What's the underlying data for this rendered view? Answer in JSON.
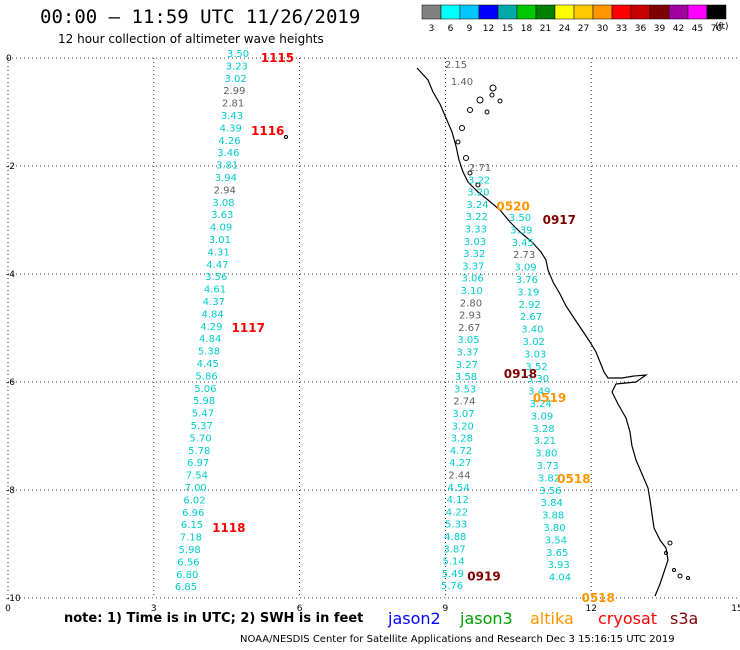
{
  "header": {
    "title": "00:00 – 11:59 UTC 11/26/2019",
    "subtitle": "12 hour collection of altimeter wave heights"
  },
  "color_scale": {
    "labels": [
      "3",
      "6",
      "9",
      "12",
      "15",
      "18",
      "21",
      "24",
      "27",
      "30",
      "33",
      "36",
      "39",
      "42",
      "45",
      "70"
    ],
    "unit": "(ft)",
    "colors": [
      "#808080",
      "#00ffff",
      "#00c8ff",
      "#0000ff",
      "#00aaaa",
      "#00c800",
      "#008000",
      "#ffff00",
      "#ffc800",
      "#ff9600",
      "#ff0000",
      "#c80000",
      "#800000",
      "#a000a0",
      "#ff00ff",
      "#000000"
    ]
  },
  "axes": {
    "x_ticks": [
      "0",
      "3",
      "6",
      "9",
      "12",
      "15"
    ],
    "y_ticks": [
      "0",
      "-2",
      "-4",
      "-6",
      "-8",
      "-10"
    ]
  },
  "map_data": {
    "columns": [
      {
        "x": 3,
        "color": "#00d0d0",
        "values": [
          [
            "3.50",
            "cyan"
          ],
          [
            "3.23",
            "cyan"
          ],
          [
            "3.02",
            "cyan"
          ],
          [
            "2.99",
            "gray"
          ],
          [
            "2.81",
            "gray"
          ],
          [
            "3.43",
            "cyan"
          ],
          [
            "4.39",
            "cyan"
          ],
          [
            "4.26",
            "cyan"
          ],
          [
            "3.46",
            "cyan"
          ],
          [
            "3.81",
            "cyan"
          ],
          [
            "3.94",
            "cyan"
          ],
          [
            "2.94",
            "gray"
          ],
          [
            "3.08",
            "cyan"
          ],
          [
            "3.63",
            "cyan"
          ],
          [
            "4.09",
            "cyan"
          ],
          [
            "3.01",
            "cyan"
          ],
          [
            "4.31",
            "cyan"
          ],
          [
            "4.47",
            "cyan"
          ],
          [
            "3.56",
            "cyan"
          ],
          [
            "4.61",
            "cyan"
          ],
          [
            "4.37",
            "cyan"
          ],
          [
            "4.84",
            "cyan"
          ],
          [
            "4.29",
            "cyan"
          ],
          [
            "4.84",
            "cyan"
          ],
          [
            "5.38",
            "cyan"
          ],
          [
            "4.45",
            "cyan"
          ],
          [
            "5.86",
            "cyan"
          ],
          [
            "5.06",
            "cyan"
          ],
          [
            "5.98",
            "cyan"
          ],
          [
            "5.47",
            "cyan"
          ],
          [
            "5.37",
            "cyan"
          ],
          [
            "5.70",
            "cyan"
          ],
          [
            "5.78",
            "cyan"
          ],
          [
            "6.97",
            "cyan"
          ],
          [
            "7.54",
            "cyan"
          ],
          [
            "7.00",
            "cyan"
          ],
          [
            "6.02",
            "cyan"
          ],
          [
            "6.96",
            "cyan"
          ],
          [
            "6.15",
            "cyan"
          ],
          [
            "7.18",
            "cyan"
          ],
          [
            "5.98",
            "cyan"
          ],
          [
            "6.56",
            "cyan"
          ],
          [
            "6.80",
            "cyan"
          ],
          [
            "6.85",
            "cyan"
          ]
        ]
      },
      {
        "x": 9,
        "values": [
          [
            "2.71",
            "gray"
          ],
          [
            "3.22",
            "cyan"
          ],
          [
            "3.20",
            "cyan"
          ],
          [
            "3.24",
            "cyan"
          ],
          [
            "3.22",
            "cyan"
          ],
          [
            "3.33",
            "cyan"
          ],
          [
            "3.03",
            "cyan"
          ],
          [
            "3.32",
            "cyan"
          ],
          [
            "3.37",
            "cyan"
          ],
          [
            "3.06",
            "cyan"
          ],
          [
            "3.10",
            "cyan"
          ],
          [
            "2.80",
            "gray"
          ],
          [
            "2.93",
            "gray"
          ],
          [
            "2.67",
            "gray"
          ],
          [
            "3.05",
            "cyan"
          ],
          [
            "3.37",
            "cyan"
          ],
          [
            "3.27",
            "cyan"
          ],
          [
            "3.58",
            "cyan"
          ],
          [
            "3.53",
            "cyan"
          ],
          [
            "2.74",
            "gray"
          ],
          [
            "3.07",
            "cyan"
          ],
          [
            "3.20",
            "cyan"
          ],
          [
            "3.28",
            "cyan"
          ],
          [
            "4.72",
            "cyan"
          ],
          [
            "4.27",
            "cyan"
          ],
          [
            "2.44",
            "gray"
          ],
          [
            "4.54",
            "cyan"
          ],
          [
            "4.12",
            "cyan"
          ],
          [
            "4.22",
            "cyan"
          ],
          [
            "5.33",
            "cyan"
          ],
          [
            "4.88",
            "cyan"
          ],
          [
            "3.87",
            "cyan"
          ],
          [
            "5.14",
            "cyan"
          ],
          [
            "5.49",
            "cyan"
          ],
          [
            "5.76",
            "cyan"
          ]
        ]
      },
      {
        "x": 10.5,
        "values": [
          [
            "3.50",
            "cyan"
          ],
          [
            "3.39",
            "cyan"
          ],
          [
            "3.45",
            "cyan"
          ],
          [
            "2.73",
            "gray"
          ],
          [
            "3.09",
            "cyan"
          ],
          [
            "3.76",
            "cyan"
          ],
          [
            "3.19",
            "cyan"
          ],
          [
            "2.92",
            "cyan"
          ],
          [
            "2.67",
            "cyan"
          ],
          [
            "3.40",
            "cyan"
          ],
          [
            "3.02",
            "cyan"
          ],
          [
            "3.03",
            "cyan"
          ],
          [
            "3.52",
            "cyan"
          ],
          [
            "3.30",
            "cyan"
          ],
          [
            "3.49",
            "cyan"
          ],
          [
            "3.24",
            "cyan"
          ],
          [
            "3.09",
            "cyan"
          ],
          [
            "3.28",
            "cyan"
          ],
          [
            "3.21",
            "cyan"
          ],
          [
            "3.80",
            "cyan"
          ],
          [
            "3.73",
            "cyan"
          ],
          [
            "3.82",
            "cyan"
          ],
          [
            "3.56",
            "cyan"
          ],
          [
            "3.84",
            "cyan"
          ],
          [
            "3.88",
            "cyan"
          ],
          [
            "3.80",
            "cyan"
          ],
          [
            "3.54",
            "cyan"
          ],
          [
            "3.65",
            "cyan"
          ],
          [
            "3.93",
            "cyan"
          ],
          [
            "4.04",
            "cyan"
          ]
        ]
      },
      {
        "x": 9.1,
        "values": [
          [
            "2.15",
            "gray"
          ],
          [
            "1.40",
            "gray"
          ]
        ]
      }
    ],
    "time_labels": [
      {
        "text": "1115",
        "color": "#ff0000",
        "lon": 5.2,
        "lat": 0
      },
      {
        "text": "1116",
        "color": "#ff0000",
        "lon": 5.0,
        "lat": -1.35
      },
      {
        "text": "1117",
        "color": "#ff0000",
        "lon": 4.6,
        "lat": -5.0
      },
      {
        "text": "1118",
        "color": "#ff0000",
        "lon": 4.2,
        "lat": -8.7
      },
      {
        "text": "0520",
        "color": "#ff9600",
        "lon": 10.05,
        "lat": -2.75
      },
      {
        "text": "0917",
        "color": "#800000",
        "lon": 11.0,
        "lat": -3.0
      },
      {
        "text": "0918",
        "color": "#800000",
        "lon": 10.2,
        "lat": -5.85
      },
      {
        "text": "0519",
        "color": "#ff9600",
        "lon": 10.8,
        "lat": -6.3
      },
      {
        "text": "0518",
        "color": "#ff9600",
        "lon": 11.3,
        "lat": -7.8
      },
      {
        "text": "0919",
        "color": "#800000",
        "lon": 9.45,
        "lat": -9.6
      },
      {
        "text": "0518",
        "color": "#ff9600",
        "lon": 11.8,
        "lat": -10.0
      }
    ]
  },
  "footer": {
    "note": "note:  1) Time is in UTC;  2) SWH is in feet",
    "satellites": [
      {
        "name": "jason2",
        "color": "#0000ff"
      },
      {
        "name": "jason3",
        "color": "#00a000"
      },
      {
        "name": "altika",
        "color": "#ff9600"
      },
      {
        "name": "cryosat",
        "color": "#ff0000"
      },
      {
        "name": "s3a",
        "color": "#800000"
      }
    ],
    "credit": "NOAA/NESDIS Center for Satellite Applications and Research     Dec  3 15:16:15 UTC 2019"
  }
}
